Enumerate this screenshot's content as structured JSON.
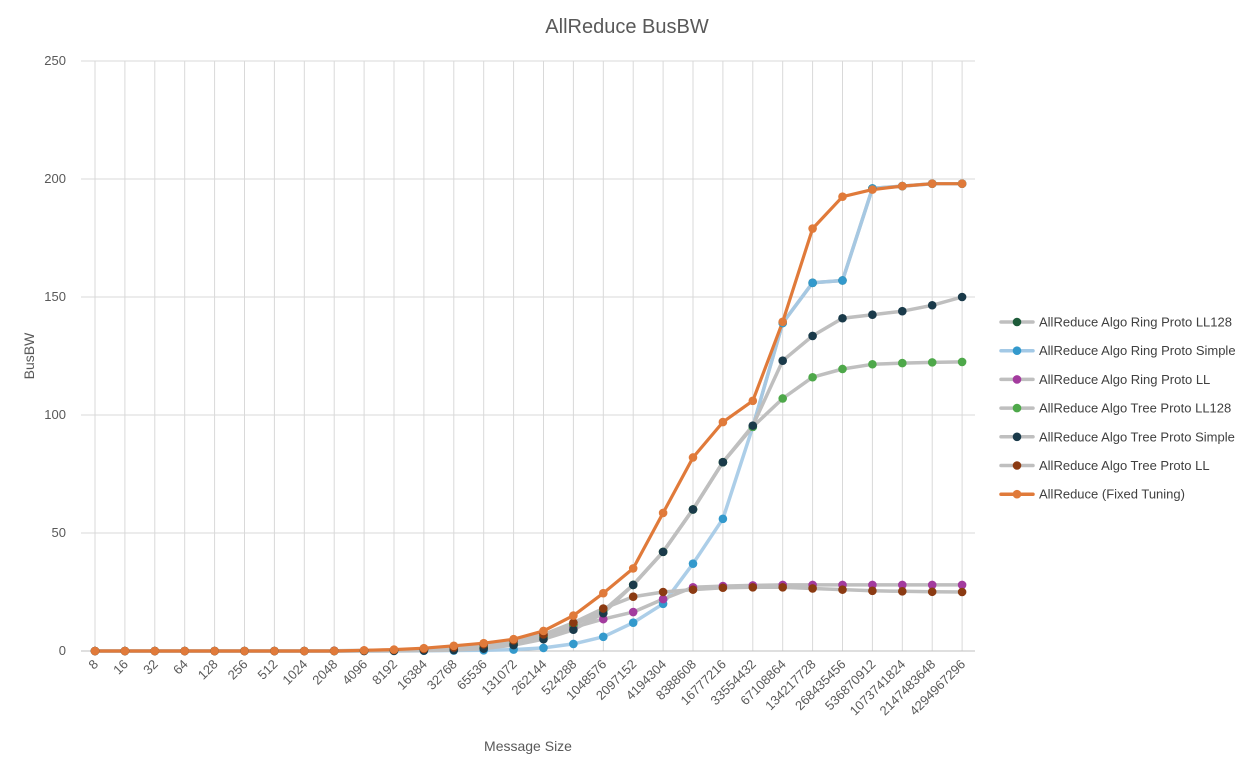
{
  "chart_data": {
    "type": "line",
    "title": "AllReduce BusBW",
    "xlabel": "Message Size",
    "ylabel": "BusBW",
    "ylim": [
      0,
      250
    ],
    "yticks": [
      0,
      50,
      100,
      150,
      200,
      250
    ],
    "grid": true,
    "legend_position": "right",
    "categories": [
      "8",
      "16",
      "32",
      "64",
      "128",
      "256",
      "512",
      "1024",
      "2048",
      "4096",
      "8192",
      "16384",
      "32768",
      "65536",
      "131072",
      "262144",
      "524288",
      "1048576",
      "2097152",
      "4194304",
      "8388608",
      "16777216",
      "33554432",
      "67108864",
      "134217728",
      "268435456",
      "536870912",
      "1073741824",
      "2147483648",
      "4294967296"
    ],
    "series": [
      {
        "name": "AllReduce Algo Ring Proto LL128",
        "marker_color": "#1e5b3a",
        "values": [
          0,
          0,
          0,
          0,
          0,
          0,
          0,
          0,
          0,
          0.1,
          0.2,
          0.4,
          0.8,
          1.5,
          3,
          6,
          11,
          17,
          28,
          42,
          60,
          80,
          95,
          139,
          156,
          157,
          196,
          197,
          198,
          198
        ]
      },
      {
        "name": "AllReduce Algo Ring Proto Simple",
        "marker_color": "#3399cc",
        "line_color": "#a3c9e6",
        "values": [
          0,
          0,
          0,
          0,
          0,
          0,
          0,
          0,
          0,
          0,
          0,
          0.1,
          0.2,
          0.3,
          0.6,
          1.3,
          3,
          6,
          12,
          20,
          37,
          56,
          95,
          139,
          156,
          157,
          196,
          197,
          198,
          198
        ]
      },
      {
        "name": "AllReduce Algo Ring Proto LL",
        "marker_color": "#a33b9e",
        "values": [
          0,
          0,
          0,
          0,
          0,
          0,
          0,
          0,
          0.1,
          0.2,
          0.4,
          0.8,
          1.5,
          2.5,
          4,
          6.5,
          10,
          13.5,
          16.5,
          22,
          27,
          27.5,
          27.8,
          28,
          28,
          28,
          28,
          28,
          28,
          28
        ]
      },
      {
        "name": "AllReduce Algo Tree Proto LL128",
        "marker_color": "#4ea84a",
        "values": [
          0,
          0,
          0,
          0,
          0,
          0,
          0,
          0,
          0,
          0.1,
          0.2,
          0.4,
          0.8,
          1.5,
          3,
          6,
          11,
          17,
          28,
          42,
          60,
          80,
          95,
          107,
          116,
          119.5,
          121.5,
          122,
          122.3,
          122.5
        ]
      },
      {
        "name": "AllReduce Algo Tree Proto Simple",
        "marker_color": "#1a3a4a",
        "values": [
          0,
          0,
          0,
          0,
          0,
          0,
          0,
          0,
          0,
          0,
          0.1,
          0.2,
          0.4,
          1,
          2.5,
          5,
          9,
          16,
          28,
          42,
          60,
          80,
          95.5,
          123,
          133.5,
          141,
          142.5,
          144,
          146.5,
          150
        ]
      },
      {
        "name": "AllReduce Algo Tree Proto LL",
        "marker_color": "#8b3a12",
        "values": [
          0,
          0,
          0,
          0,
          0,
          0,
          0,
          0,
          0.1,
          0.2,
          0.4,
          0.8,
          1.5,
          2.8,
          4.5,
          7,
          12,
          18,
          23,
          25,
          26,
          26.8,
          27,
          27,
          26.5,
          26,
          25.5,
          25.3,
          25.1,
          25
        ]
      },
      {
        "name": "AllReduce (Fixed Tuning)",
        "marker_color": "#e07a3a",
        "line_color": "#e07a3a",
        "values": [
          0,
          0,
          0,
          0,
          0,
          0,
          0,
          0,
          0,
          0.3,
          0.6,
          1.2,
          2.2,
          3.3,
          5,
          8.5,
          15,
          24.5,
          35,
          58.5,
          82,
          97,
          106,
          139.5,
          179,
          192.5,
          195.5,
          197,
          198,
          198
        ]
      }
    ]
  }
}
